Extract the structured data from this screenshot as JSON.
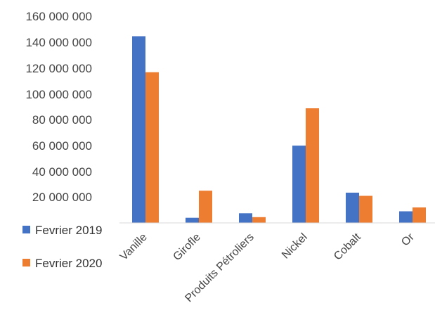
{
  "chart_data": {
    "type": "bar",
    "categories": [
      "Vanille",
      "Girofle",
      "Produits Pétroliers",
      "Nickel",
      "Cobalt",
      "Or"
    ],
    "series": [
      {
        "name": "Fevrier 2019",
        "color": "#4472C4",
        "values": [
          145000000,
          4000000,
          7500000,
          60000000,
          23500000,
          9000000
        ]
      },
      {
        "name": "Fevrier 2020",
        "color": "#ED7D31",
        "values": [
          117000000,
          25000000,
          4500000,
          89000000,
          21000000,
          12000000
        ]
      }
    ],
    "ylim": [
      0,
      160000000
    ],
    "yticks": [
      "160 000 000",
      "140 000 000",
      "120 000 000",
      "100 000 000",
      "80 000 000",
      "60 000 000",
      "40 000 000",
      "20 000 000"
    ],
    "ytick_values": [
      160000000,
      140000000,
      120000000,
      100000000,
      80000000,
      60000000,
      40000000,
      20000000
    ],
    "grid": false,
    "legend_position": "bottom-left"
  }
}
